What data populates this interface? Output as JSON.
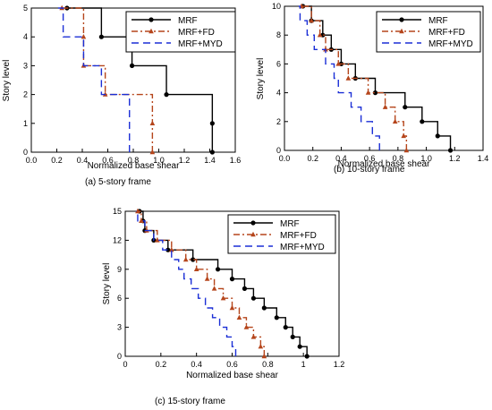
{
  "chart_data": [
    {
      "type": "line",
      "caption": "(a) 5-story frame",
      "xlabel": "Normalized base shear",
      "ylabel": "Story level",
      "xlim": [
        0.0,
        1.6
      ],
      "ylim": [
        0,
        5
      ],
      "xticks": [
        "0.0",
        "0.2",
        "0.4",
        "0.6",
        "0.8",
        "1.0",
        "1.2",
        "1.4",
        "1.6"
      ],
      "yticks": [
        "0",
        "1",
        "2",
        "3",
        "4",
        "5"
      ],
      "legend_position": "top-right",
      "series": [
        {
          "name": "MRF",
          "color": "#000000",
          "dash": "solid",
          "marker": "circle",
          "x": [
            1.42,
            1.42,
            1.06,
            0.79,
            0.55,
            0.28
          ],
          "y": [
            0,
            1,
            2,
            3,
            4,
            5
          ]
        },
        {
          "name": "MRF+FD",
          "color": "#b5451b",
          "dash": "dashdot",
          "marker": "triangle",
          "x": [
            0.95,
            0.95,
            0.58,
            0.41,
            0.41,
            0.24
          ],
          "y": [
            0,
            1,
            2,
            3,
            4,
            5
          ]
        },
        {
          "name": "MRF+MYD",
          "color": "#1b2fd6",
          "dash": "dash",
          "marker": "none",
          "x": [
            0.77,
            0.77,
            0.55,
            0.41,
            0.25,
            0.21
          ],
          "y": [
            0,
            1,
            2,
            3,
            4,
            5
          ]
        }
      ]
    },
    {
      "type": "line",
      "caption": "(b) 10-story frame",
      "xlabel": "Normalized base shear",
      "ylabel": "Story level",
      "xlim": [
        0.0,
        1.4
      ],
      "ylim": [
        0,
        10
      ],
      "xticks": [
        "0.0",
        "0.2",
        "0.4",
        "0.6",
        "0.8",
        "1.0",
        "1.2",
        "1.4"
      ],
      "yticks": [
        "0",
        "2",
        "4",
        "6",
        "8",
        "10"
      ],
      "legend_position": "top-right",
      "series": [
        {
          "name": "MRF",
          "color": "#000000",
          "dash": "solid",
          "marker": "circle",
          "x": [
            1.17,
            1.08,
            0.97,
            0.85,
            0.64,
            0.5,
            0.4,
            0.33,
            0.27,
            0.19,
            0.13
          ],
          "y": [
            0,
            1,
            2,
            3,
            4,
            5,
            6,
            7,
            8,
            9,
            10
          ]
        },
        {
          "name": "MRF+FD",
          "color": "#b5451b",
          "dash": "dashdot",
          "marker": "triangle",
          "x": [
            0.86,
            0.84,
            0.78,
            0.71,
            0.59,
            0.45,
            0.38,
            0.29,
            0.25,
            0.19,
            0.12
          ],
          "y": [
            0,
            1,
            2,
            3,
            4,
            5,
            6,
            7,
            8,
            9,
            10
          ]
        },
        {
          "name": "MRF+MYD",
          "color": "#1b2fd6",
          "dash": "dash",
          "marker": "none",
          "x": [
            0.67,
            0.62,
            0.54,
            0.47,
            0.38,
            0.35,
            0.29,
            0.21,
            0.16,
            0.11,
            0.1
          ],
          "y": [
            0,
            1,
            2,
            3,
            4,
            5,
            6,
            7,
            8,
            9,
            10
          ]
        }
      ]
    },
    {
      "type": "line",
      "caption": "(c) 15-story frame",
      "xlabel": "Normalized base shear",
      "ylabel": "Story level",
      "xlim": [
        0,
        1.2
      ],
      "ylim": [
        0,
        15
      ],
      "xticks": [
        "0",
        "0.2",
        "0.4",
        "0.6",
        "0.8",
        "1",
        "1.2"
      ],
      "yticks": [
        "0",
        "3",
        "6",
        "9",
        "12",
        "15"
      ],
      "legend_position": "top-right",
      "series": [
        {
          "name": "MRF",
          "color": "#000000",
          "dash": "solid",
          "marker": "circle",
          "x": [
            1.02,
            0.98,
            0.94,
            0.9,
            0.85,
            0.78,
            0.72,
            0.67,
            0.6,
            0.52,
            0.38,
            0.24,
            0.16,
            0.11,
            0.1,
            0.08
          ],
          "y": [
            0,
            1,
            2,
            3,
            4,
            5,
            6,
            7,
            8,
            9,
            10,
            11,
            12,
            13,
            14,
            15
          ]
        },
        {
          "name": "MRF+FD",
          "color": "#b5451b",
          "dash": "dashdot",
          "marker": "triangle",
          "x": [
            0.78,
            0.76,
            0.72,
            0.68,
            0.64,
            0.6,
            0.55,
            0.5,
            0.46,
            0.4,
            0.34,
            0.26,
            0.18,
            0.12,
            0.09,
            0.07
          ],
          "y": [
            0,
            1,
            2,
            3,
            4,
            5,
            6,
            7,
            8,
            9,
            10,
            11,
            12,
            13,
            14,
            15
          ]
        },
        {
          "name": "MRF+MYD",
          "color": "#1b2fd6",
          "dash": "dash",
          "marker": "none",
          "x": [
            0.62,
            0.6,
            0.57,
            0.53,
            0.49,
            0.45,
            0.41,
            0.37,
            0.33,
            0.3,
            0.26,
            0.21,
            0.16,
            0.11,
            0.07,
            0.06
          ],
          "y": [
            0,
            1,
            2,
            3,
            4,
            5,
            6,
            7,
            8,
            9,
            10,
            11,
            12,
            13,
            14,
            15
          ]
        }
      ]
    }
  ]
}
